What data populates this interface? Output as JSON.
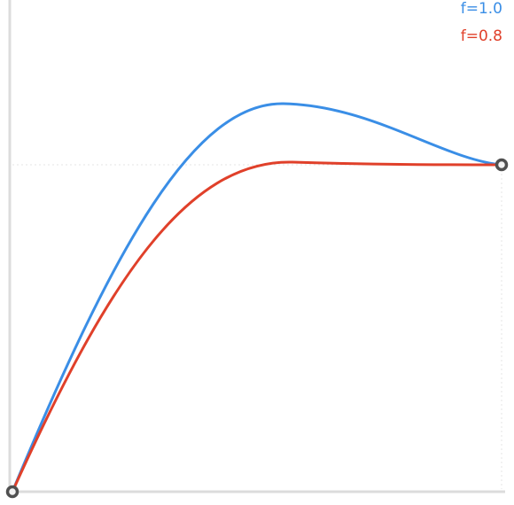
{
  "legend": {
    "items": [
      {
        "label": "f=1.0",
        "color": "#3a8ee6"
      },
      {
        "label": "f=0.8",
        "color": "#e0402a"
      }
    ]
  },
  "colors": {
    "axis": "#dcdcdc",
    "guide": "#e6e6e6",
    "handle_stroke": "#505050",
    "handle_fill": "#f2f2f2"
  },
  "icons": {
    "start_handle": "circle-handle-icon",
    "end_handle": "circle-handle-icon"
  }
}
